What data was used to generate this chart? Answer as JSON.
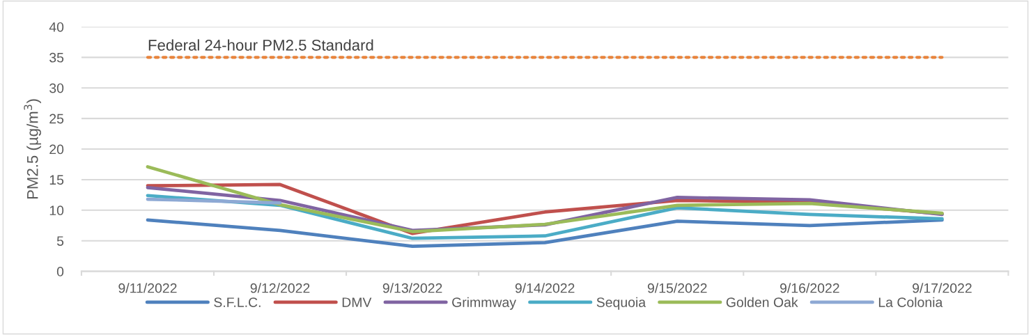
{
  "chart_data": {
    "type": "line",
    "ylabel": "PM2.5 (µg/m$^{3}$)",
    "categories": [
      "9/11/2022",
      "9/12/2022",
      "9/13/2022",
      "9/14/2022",
      "9/15/2022",
      "9/16/2022",
      "9/17/2022"
    ],
    "series": [
      {
        "name": "S.F.L.C.",
        "color": "#4f81bd",
        "values": [
          8.4,
          6.7,
          4.1,
          4.7,
          8.2,
          7.5,
          8.4
        ]
      },
      {
        "name": "DMV",
        "color": "#c0504d",
        "values": [
          14.0,
          14.2,
          6.2,
          9.7,
          11.6,
          11.3,
          9.4
        ]
      },
      {
        "name": "Grimmway",
        "color": "#8064a2",
        "values": [
          13.7,
          11.6,
          6.7,
          7.6,
          12.1,
          11.7,
          9.3
        ]
      },
      {
        "name": "Sequoia",
        "color": "#4bacc6",
        "values": [
          12.4,
          10.8,
          5.4,
          5.8,
          10.4,
          9.3,
          8.6
        ]
      },
      {
        "name": "Golden Oak",
        "color": "#9bbb59",
        "values": [
          17.1,
          10.9,
          6.5,
          7.7,
          10.8,
          11.1,
          9.5
        ]
      },
      {
        "name": "La Colonia",
        "color": "#8ea9d4",
        "values": [
          11.8,
          11.2,
          null,
          null,
          null,
          null,
          null
        ]
      }
    ],
    "ref_lines": [
      {
        "axis": "y",
        "value": 35,
        "label": "Federal 24-hour PM2.5 Standard",
        "color": "#e8843c",
        "line_style": "dotted"
      }
    ],
    "ylim": [
      0,
      40
    ],
    "yticks": [
      0,
      5,
      10,
      15,
      20,
      25,
      30,
      35,
      40
    ],
    "grid": "y",
    "legend": "bottom",
    "marker": "none",
    "line_style": "solid"
  }
}
